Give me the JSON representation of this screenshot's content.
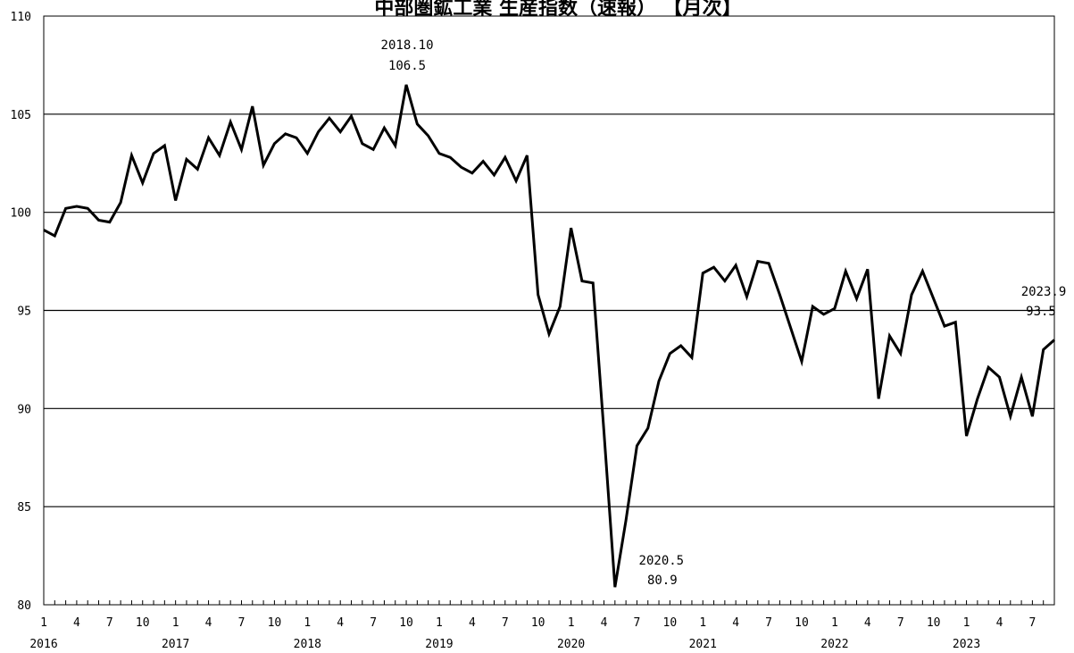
{
  "chart_data": {
    "type": "line",
    "title": "中部圏鉱工業 生産指数（速報） 【月次】",
    "ylim": [
      80,
      110
    ],
    "yticks": [
      80,
      85,
      90,
      95,
      100,
      105,
      110
    ],
    "grid": true,
    "x_month_labels": [
      1,
      4,
      7,
      10
    ],
    "years": [
      "2016",
      "2017",
      "2018",
      "2019",
      "2020",
      "2021",
      "2022",
      "2023"
    ],
    "series": [
      {
        "start": "2016-01",
        "end": "2023-09",
        "values": [
          99.1,
          98.8,
          100.2,
          100.3,
          100.2,
          99.6,
          99.5,
          100.5,
          102.9,
          101.5,
          103.0,
          103.4,
          100.6,
          102.7,
          102.2,
          103.8,
          102.9,
          104.6,
          103.2,
          105.4,
          102.4,
          103.5,
          104.0,
          103.8,
          103.0,
          104.1,
          104.8,
          104.1,
          104.9,
          103.5,
          103.2,
          104.3,
          103.4,
          106.5,
          104.5,
          103.9,
          103.0,
          102.8,
          102.3,
          102.0,
          102.6,
          101.9,
          102.8,
          101.6,
          102.9,
          95.8,
          93.8,
          95.2,
          99.2,
          96.5,
          96.4,
          88.8,
          80.9,
          84.3,
          88.1,
          89.0,
          91.4,
          92.8,
          93.2,
          92.6,
          96.9,
          97.2,
          96.5,
          97.3,
          95.7,
          97.5,
          97.4,
          95.8,
          94.1,
          92.4,
          95.2,
          94.8,
          95.1,
          97.0,
          95.6,
          97.1,
          90.5,
          93.7,
          92.8,
          95.8,
          97.0,
          95.6,
          94.2,
          94.4,
          88.6,
          90.5,
          92.1,
          91.6,
          89.6,
          91.6,
          89.6,
          93.0,
          93.5
        ]
      }
    ],
    "annotations": [
      {
        "line1": "2018.10",
        "line2": "106.5"
      },
      {
        "line1": "2020.5",
        "line2": "80.9"
      },
      {
        "line1": "2023.9",
        "line2": "93.5"
      }
    ]
  }
}
